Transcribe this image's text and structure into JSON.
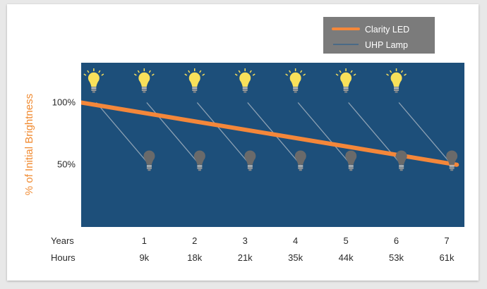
{
  "chart_data": {
    "type": "line",
    "ylabel": "% of Initial Brightness",
    "y_ticks": [
      {
        "label": "100%",
        "value": 100
      },
      {
        "label": "50%",
        "value": 50
      }
    ],
    "ylim": [
      0,
      132
    ],
    "x_rows": [
      {
        "label": "Years",
        "values": [
          "1",
          "2",
          "3",
          "4",
          "5",
          "6",
          "7"
        ]
      },
      {
        "label": "Hours",
        "values": [
          "9k",
          "18k",
          "21k",
          "35k",
          "44k",
          "53k",
          "61k"
        ]
      }
    ],
    "x_domain": [
      -0.25,
      7.35
    ],
    "series": [
      {
        "name": "Clarity LED",
        "color": "#f4873a",
        "x": [
          -0.25,
          7.2
        ],
        "y": [
          100,
          50
        ]
      },
      {
        "name": "UHP Lamp",
        "color": "#4a6a86",
        "segments": [
          {
            "x": [
              0.05,
              1.1
            ],
            "y": [
              100,
              50
            ]
          },
          {
            "x": [
              1.05,
              2.1
            ],
            "y": [
              100,
              50
            ]
          },
          {
            "x": [
              2.05,
              3.1
            ],
            "y": [
              100,
              50
            ]
          },
          {
            "x": [
              3.05,
              4.1
            ],
            "y": [
              100,
              50
            ]
          },
          {
            "x": [
              4.05,
              5.1
            ],
            "y": [
              100,
              50
            ]
          },
          {
            "x": [
              5.05,
              6.1
            ],
            "y": [
              100,
              50
            ]
          },
          {
            "x": [
              6.05,
              7.1
            ],
            "y": [
              100,
              50
            ]
          }
        ]
      }
    ],
    "bulbs": {
      "lit_icon": "lit-bulb-icon",
      "dim_icon": "dim-bulb-icon",
      "lit_color": "#f8e05a",
      "dim_color": "#6a6a6a",
      "lit_x": [
        0,
        1,
        2,
        3,
        4,
        5,
        6
      ],
      "lit_y": 115,
      "dim_x": [
        1.1,
        2.1,
        3.1,
        4.1,
        5.1,
        6.1,
        7.1
      ],
      "dim_y": 50
    },
    "legend": {
      "placement": "top-right"
    },
    "colors": {
      "plot_background": "#1d4f7a",
      "legend_background": "#7b7b7b"
    },
    "grid": false
  }
}
